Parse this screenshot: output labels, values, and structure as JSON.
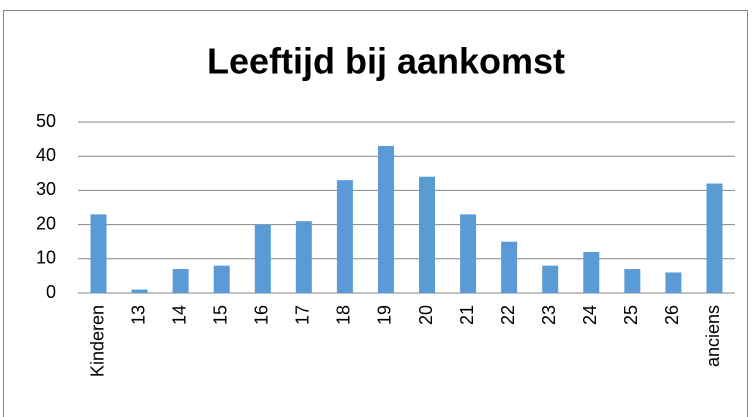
{
  "chart_data": {
    "type": "bar",
    "title": "Leeftijd bij aankomst",
    "categories": [
      "Kinderen",
      "13",
      "14",
      "15",
      "16",
      "17",
      "18",
      "19",
      "20",
      "21",
      "22",
      "23",
      "24",
      "25",
      "26",
      "anciens"
    ],
    "values": [
      23,
      1,
      7,
      8,
      20,
      21,
      33,
      43,
      34,
      23,
      15,
      8,
      12,
      7,
      6,
      32
    ],
    "color": "#5b9bd5",
    "ylim": [
      0,
      50
    ],
    "yticks": [
      0,
      10,
      20,
      30,
      40,
      50
    ],
    "grid": true
  }
}
